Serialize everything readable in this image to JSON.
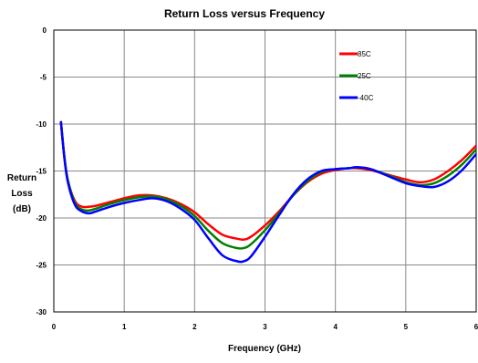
{
  "chart_data": {
    "type": "line",
    "title": "Return Loss versus Frequency",
    "xlabel": "Frequency (GHz)",
    "ylabel_lines": [
      "Return",
      "Loss",
      "(dB)"
    ],
    "xlim": [
      0,
      6
    ],
    "ylim": [
      -30,
      0
    ],
    "xticks": [
      0,
      1,
      2,
      3,
      4,
      5,
      6
    ],
    "yticks": [
      0,
      -5,
      -10,
      -15,
      -20,
      -25,
      -30
    ],
    "grid": true,
    "legend_position": "top-right",
    "series": [
      {
        "name": "85C",
        "color": "#ff0000",
        "x": [
          0.1,
          0.15,
          0.2,
          0.3,
          0.4,
          0.5,
          0.6,
          0.8,
          1.0,
          1.2,
          1.4,
          1.6,
          1.8,
          2.0,
          2.2,
          2.4,
          2.6,
          2.7,
          2.8,
          3.0,
          3.2,
          3.4,
          3.6,
          3.8,
          4.0,
          4.2,
          4.3,
          4.5,
          4.8,
          5.0,
          5.2,
          5.4,
          5.6,
          5.8,
          6.0
        ],
        "y": [
          -9.7,
          -13.5,
          -16.0,
          -18.2,
          -18.8,
          -18.8,
          -18.7,
          -18.3,
          -17.9,
          -17.6,
          -17.6,
          -17.9,
          -18.5,
          -19.4,
          -20.7,
          -21.8,
          -22.2,
          -22.3,
          -22.0,
          -20.8,
          -19.3,
          -17.6,
          -16.2,
          -15.3,
          -14.9,
          -14.7,
          -14.7,
          -14.9,
          -15.5,
          -15.9,
          -16.2,
          -15.9,
          -15.0,
          -13.8,
          -12.3
        ]
      },
      {
        "name": "25C",
        "color": "#008000",
        "x": [
          0.1,
          0.15,
          0.2,
          0.3,
          0.4,
          0.5,
          0.6,
          0.8,
          1.0,
          1.2,
          1.4,
          1.6,
          1.8,
          2.0,
          2.2,
          2.4,
          2.6,
          2.7,
          2.8,
          3.0,
          3.2,
          3.4,
          3.6,
          3.8,
          4.0,
          4.2,
          4.3,
          4.5,
          4.8,
          5.0,
          5.2,
          5.4,
          5.6,
          5.8,
          6.0
        ],
        "y": [
          -9.7,
          -13.5,
          -16.0,
          -18.4,
          -19.1,
          -19.2,
          -19.0,
          -18.5,
          -18.1,
          -17.8,
          -17.7,
          -18.0,
          -18.7,
          -19.8,
          -21.4,
          -22.7,
          -23.2,
          -23.2,
          -22.8,
          -21.3,
          -19.5,
          -17.6,
          -16.1,
          -15.1,
          -14.8,
          -14.7,
          -14.6,
          -14.8,
          -15.6,
          -16.2,
          -16.5,
          -16.3,
          -15.5,
          -14.3,
          -12.7
        ]
      },
      {
        "name": "-40C",
        "color": "#0000ff",
        "x": [
          0.1,
          0.15,
          0.2,
          0.3,
          0.4,
          0.5,
          0.6,
          0.8,
          1.0,
          1.2,
          1.4,
          1.6,
          1.8,
          2.0,
          2.2,
          2.4,
          2.6,
          2.7,
          2.8,
          3.0,
          3.2,
          3.4,
          3.6,
          3.8,
          4.0,
          4.2,
          4.3,
          4.5,
          4.8,
          5.0,
          5.2,
          5.4,
          5.6,
          5.8,
          6.0
        ],
        "y": [
          -9.7,
          -13.6,
          -16.2,
          -18.6,
          -19.3,
          -19.5,
          -19.3,
          -18.8,
          -18.4,
          -18.1,
          -17.9,
          -18.2,
          -19.0,
          -20.2,
          -22.2,
          -24.0,
          -24.6,
          -24.6,
          -24.1,
          -22.0,
          -19.7,
          -17.5,
          -15.9,
          -15.0,
          -14.8,
          -14.7,
          -14.6,
          -14.8,
          -15.7,
          -16.3,
          -16.6,
          -16.7,
          -16.1,
          -14.9,
          -13.2
        ]
      }
    ]
  }
}
